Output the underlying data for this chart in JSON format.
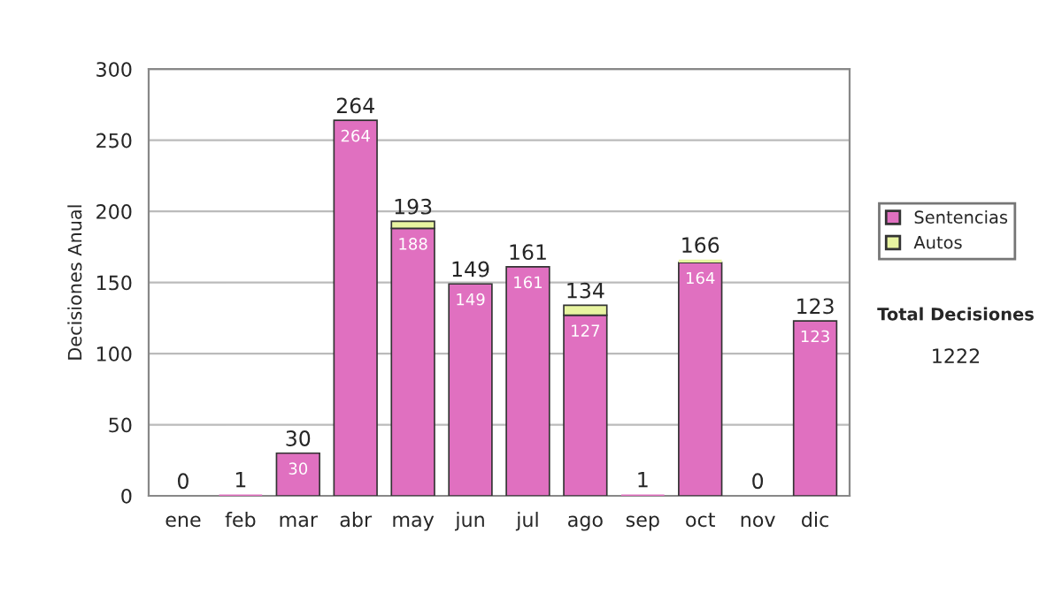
{
  "chart_data": {
    "type": "bar",
    "stacked": true,
    "ylabel": "Decisiones Anual",
    "categories": [
      "ene",
      "feb",
      "mar",
      "abr",
      "may",
      "jun",
      "jul",
      "ago",
      "sep",
      "oct",
      "nov",
      "dic"
    ],
    "series": [
      {
        "name": "Sentencias",
        "color": "#e070c0",
        "values": [
          0,
          1,
          30,
          264,
          188,
          149,
          161,
          127,
          1,
          164,
          0,
          123
        ],
        "value_labels": [
          null,
          null,
          "30",
          "264",
          "188",
          "149",
          "161",
          "127",
          null,
          "164",
          null,
          "123"
        ]
      },
      {
        "name": "Autos",
        "color": "#e8f4a0",
        "values": [
          0,
          0,
          0,
          0,
          5,
          0,
          0,
          7,
          0,
          2,
          0,
          0
        ]
      }
    ],
    "totals": [
      "0",
      "1",
      "30",
      "264",
      "193",
      "149",
      "161",
      "134",
      "1",
      "166",
      "0",
      "123"
    ],
    "ylim": [
      0,
      300
    ],
    "yticks": [
      0,
      50,
      100,
      150,
      200,
      250,
      300
    ],
    "grid": "y",
    "legend": "right",
    "annotations": [
      "Total Decisiones",
      "1222"
    ]
  }
}
